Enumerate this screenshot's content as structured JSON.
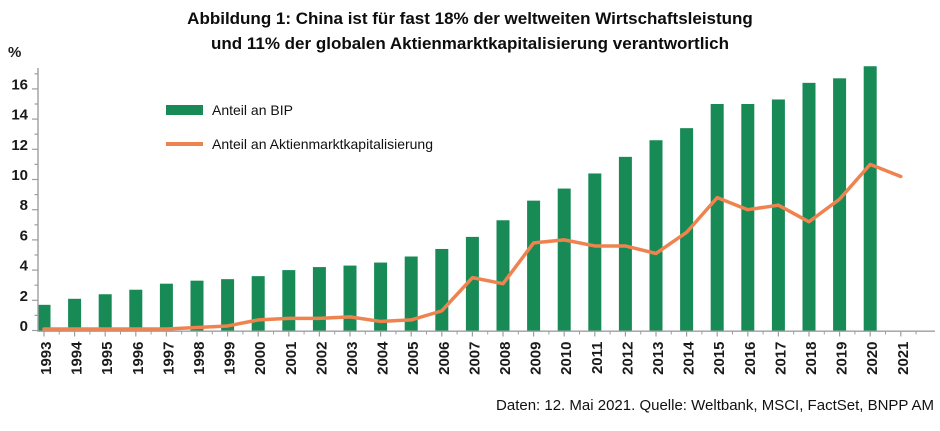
{
  "title": {
    "line1": "Abbildung 1: China ist für fast 18% der weltweiten Wirtschaftsleistung",
    "line2": "und 11% der globalen Aktienmarktkapitalisierung verantwortlich"
  },
  "source": "Daten: 12. Mai 2021. Quelle: Weltbank, MSCI, FactSet, BNPP AM",
  "colors": {
    "bar": "#178a55",
    "line": "#ef8350",
    "axis": "#9e9e9e",
    "text": "#1a1a1a"
  },
  "legend": {
    "items": [
      {
        "label": "Anteil an BIP",
        "type": "bar"
      },
      {
        "label": "Anteil an Aktienmarktkapitalisierung",
        "type": "line"
      }
    ]
  },
  "axes": {
    "y_unit": "%",
    "y_ticks": [
      0,
      2,
      4,
      6,
      8,
      10,
      12,
      14,
      16
    ],
    "ylim": [
      0,
      17.4
    ]
  },
  "chart_data": {
    "type": "bar",
    "title": "Abbildung 1: China ist für fast 18% der weltweiten Wirtschaftsleistung und 11% der globalen Aktienmarktkapitalisierung verantwortlich",
    "categories": [
      "1993",
      "1994",
      "1995",
      "1996",
      "1997",
      "1998",
      "1999",
      "2000",
      "2001",
      "2002",
      "2003",
      "2004",
      "2005",
      "2006",
      "2007",
      "2008",
      "2009",
      "2010",
      "2011",
      "2012",
      "2013",
      "2014",
      "2015",
      "2016",
      "2017",
      "2018",
      "2019",
      "2020",
      "2021"
    ],
    "series": [
      {
        "name": "Anteil an BIP",
        "type": "bar",
        "values": [
          1.7,
          2.1,
          2.4,
          2.7,
          3.1,
          3.3,
          3.4,
          3.6,
          4.0,
          4.2,
          4.3,
          4.5,
          4.9,
          5.4,
          6.2,
          7.3,
          8.6,
          9.4,
          10.4,
          11.5,
          12.6,
          13.4,
          15.0,
          15.0,
          15.3,
          16.4,
          16.7,
          17.5,
          null
        ]
      },
      {
        "name": "Anteil an Aktienmarktkapitalisierung",
        "type": "line",
        "values": [
          0.1,
          0.1,
          0.1,
          0.1,
          0.1,
          0.2,
          0.3,
          0.7,
          0.8,
          0.8,
          0.9,
          0.6,
          0.7,
          1.3,
          3.5,
          3.1,
          5.8,
          6.0,
          5.6,
          5.6,
          5.1,
          6.5,
          8.8,
          8.0,
          8.3,
          7.2,
          8.7,
          11.0,
          10.2
        ]
      }
    ],
    "xlabel": "",
    "ylabel": "%",
    "ylim": [
      0,
      17.4
    ],
    "grid": false,
    "legend_position": "top-left"
  }
}
